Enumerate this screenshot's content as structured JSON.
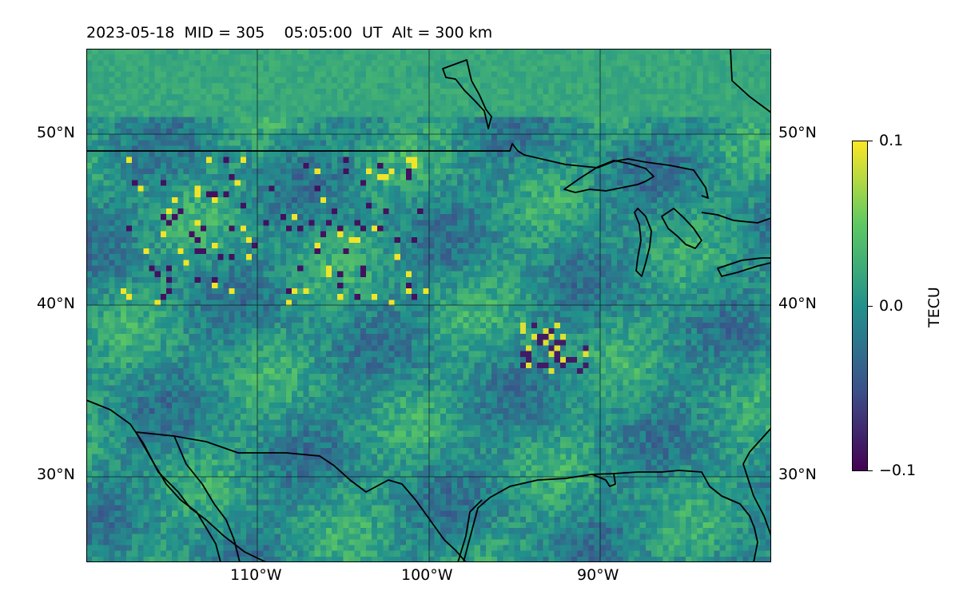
{
  "title": "2023-05-18  MID = 305    05:05:00  UT  Alt = 300 km",
  "map": {
    "type": "tec-map",
    "lon_range": [
      -120,
      -80
    ],
    "lat_range": [
      25,
      55
    ],
    "gridlines": {
      "lons": [
        -110,
        -100,
        -90
      ],
      "lats": [
        30,
        40,
        50
      ]
    },
    "lat_tick_labels": [
      "50°N",
      "40°N",
      "30°N"
    ],
    "lon_tick_labels": [
      "110°W",
      "100°W",
      "90°W"
    ],
    "coastline_color": "#000000"
  },
  "colorbar": {
    "label": "TECU",
    "min": -0.1,
    "max": 0.1,
    "ticks": [
      "0.1",
      "0.0",
      "−0.1"
    ],
    "colormap": "viridis",
    "stops": [
      "#440154",
      "#3b528b",
      "#21918c",
      "#5ec962",
      "#fde725"
    ]
  }
}
